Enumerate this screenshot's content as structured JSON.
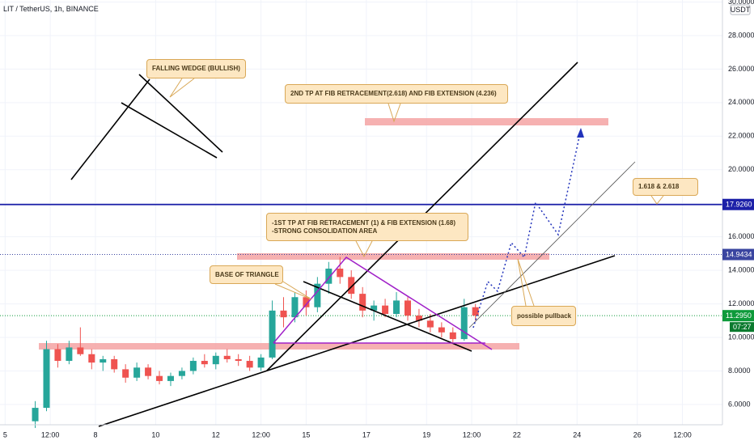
{
  "header": {
    "symbol": "LIT / TetherUS, 1h, BINANCE",
    "currency": "USDT",
    "countdown": "07:27"
  },
  "chart_data": {
    "type": "candlestick",
    "x": [
      6,
      6.375,
      6.75,
      7.125,
      7.5,
      7.875,
      8.25,
      8.625,
      9,
      9.375,
      9.75,
      10.125,
      10.5,
      10.875,
      11.25,
      11.625,
      12,
      12.375,
      12.75,
      13.125,
      13.5,
      13.875,
      14.25,
      14.625,
      15,
      15.375,
      15.75,
      16.125,
      16.5,
      16.875,
      17.25,
      17.625,
      18,
      18.375,
      18.75,
      19.125,
      19.5,
      19.875,
      20.25,
      20.625
    ],
    "open": [
      5.0,
      5.8,
      9.3,
      8.6,
      9.4,
      9.0,
      8.5,
      8.7,
      8.1,
      7.6,
      8.2,
      7.7,
      7.4,
      7.7,
      8.0,
      8.6,
      8.4,
      8.9,
      8.7,
      8.6,
      8.2,
      8.8,
      11.6,
      11.2,
      12.4,
      11.8,
      13.2,
      14.1,
      13.6,
      12.6,
      11.6,
      11.9,
      11.4,
      12.2,
      11.3,
      11.0,
      10.6,
      10.3,
      9.9,
      11.8
    ],
    "high": [
      6.2,
      9.8,
      9.6,
      9.8,
      10.6,
      9.3,
      8.9,
      8.9,
      8.4,
      8.5,
      8.4,
      8.0,
      7.9,
      8.2,
      8.8,
      9.0,
      9.1,
      9.3,
      9.0,
      8.9,
      9.0,
      12.2,
      12.4,
      12.7,
      12.8,
      13.6,
      14.5,
      14.8,
      14.0,
      13.0,
      12.2,
      12.3,
      12.7,
      12.4,
      11.7,
      11.4,
      10.9,
      10.6,
      12.3,
      12.0
    ],
    "low": [
      4.6,
      5.6,
      8.2,
      8.4,
      8.9,
      8.1,
      8.0,
      7.9,
      7.3,
      7.4,
      7.5,
      7.2,
      7.1,
      7.5,
      7.8,
      8.2,
      8.1,
      8.5,
      8.3,
      8.0,
      8.0,
      8.7,
      10.6,
      10.9,
      11.3,
      11.5,
      12.6,
      13.2,
      12.3,
      11.2,
      11.0,
      11.2,
      11.2,
      11.0,
      10.6,
      10.3,
      10.0,
      9.7,
      9.8,
      11.0
    ],
    "close": [
      5.8,
      9.3,
      8.6,
      9.4,
      9.0,
      8.5,
      8.7,
      8.1,
      7.6,
      8.2,
      7.7,
      7.4,
      7.7,
      8.0,
      8.6,
      8.4,
      8.9,
      8.7,
      8.6,
      8.2,
      8.8,
      11.6,
      11.2,
      12.4,
      11.8,
      13.2,
      14.1,
      13.6,
      12.6,
      11.6,
      11.9,
      11.4,
      12.2,
      11.3,
      11.0,
      10.6,
      10.3,
      9.9,
      11.8,
      11.3
    ],
    "up_color": "#26a69a",
    "down_color": "#ef5350",
    "xlim": [
      4.83,
      28.83
    ],
    "ylim": [
      4.79,
      30.12
    ],
    "xticks": [
      5,
      {
        "value": 6.5,
        "label": "12:00"
      },
      8,
      10,
      12,
      {
        "value": 13.5,
        "label": "12:00"
      },
      15,
      17,
      19,
      {
        "value": 20.5,
        "label": "12:00"
      },
      22,
      24,
      26,
      {
        "value": 27.5,
        "label": "12:00"
      }
    ],
    "yticks": [
      {
        "value": 6,
        "label": "6.0000"
      },
      {
        "value": 8,
        "label": "8.0000"
      },
      {
        "value": 10,
        "label": "10.0000"
      },
      {
        "value": 12,
        "label": "12.0000"
      },
      {
        "value": 14,
        "label": "14.0000"
      },
      {
        "value": 16,
        "label": "16.0000"
      },
      {
        "value": 18,
        "label": "18.0000"
      },
      {
        "value": 20,
        "label": "20.0000"
      },
      {
        "value": 22,
        "label": "22.0000"
      },
      {
        "value": 24,
        "label": "24.0000"
      },
      {
        "value": 26,
        "label": "26.0000"
      },
      {
        "value": 28,
        "label": "28.0000"
      },
      {
        "value": 30,
        "label": "30.0000"
      }
    ],
    "grid": true,
    "price_labels": [
      {
        "value": 17.926,
        "label": "17.9260",
        "color": "#1c20a8"
      },
      {
        "value": 14.9434,
        "label": "14.9434",
        "color": "#3a45a0"
      },
      {
        "value": 11.295,
        "label": "11.2950",
        "color": "#0d9a3a"
      }
    ],
    "annotations": [
      {
        "text": "FALLING WEDGE (BULLISH)"
      },
      {
        "text": "2ND TP AT FIB RETRACEMENT(2.618) AND FIB EXTENSION (4.236)"
      },
      {
        "text": "1.618 & 2.618"
      },
      {
        "lines": [
          "-1ST TP AT FIB RETRACEMENT (1) & FIB EXTENSION (1.68)",
          "-STRONG CONSOLIDATION AREA"
        ]
      },
      {
        "text": "BASE OF TRIANGLE"
      },
      {
        "text": "possible pullback"
      }
    ]
  }
}
